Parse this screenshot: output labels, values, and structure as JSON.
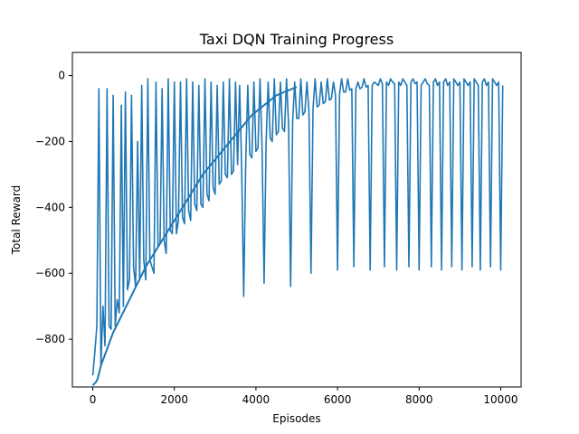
{
  "chart_data": {
    "type": "line",
    "title": "Taxi DQN Training Progress",
    "xlabel": "Episodes",
    "ylabel": "Total Reward",
    "xlim": [
      -500,
      10500
    ],
    "ylim": [
      -945,
      70
    ],
    "xticks": [
      0,
      2000,
      4000,
      6000,
      8000,
      10000
    ],
    "yticks": [
      0,
      -200,
      -400,
      -600,
      -800
    ],
    "x_tick_labels": [
      "0",
      "2000",
      "4000",
      "6000",
      "8000",
      "10000"
    ],
    "y_tick_labels": [
      "0",
      "−200",
      "−400",
      "−600",
      "−800"
    ],
    "grid": false,
    "legend": "none",
    "line_color": "#1f77b4",
    "series": [
      {
        "x_start": 0,
        "x_step": 50,
        "values": [
          -910,
          -840,
          -760,
          -40,
          -880,
          -700,
          -820,
          -40,
          -760,
          -770,
          -60,
          -760,
          -680,
          -720,
          -90,
          -700,
          -50,
          -650,
          -620,
          -60,
          -580,
          -640,
          -200,
          -620,
          -30,
          -560,
          -620,
          -10,
          -560,
          -580,
          -600,
          -20,
          -520,
          -510,
          -40,
          -500,
          -540,
          -10,
          -470,
          -480,
          -20,
          -480,
          -440,
          -20,
          -430,
          -450,
          -10,
          -410,
          -440,
          -20,
          -390,
          -410,
          -30,
          -390,
          -400,
          -10,
          -360,
          -380,
          -20,
          -340,
          -360,
          -30,
          -330,
          -320,
          -20,
          -300,
          -310,
          -10,
          -300,
          -290,
          -20,
          -270,
          -30,
          -280,
          -670,
          -260,
          -30,
          -240,
          -250,
          -20,
          -230,
          -220,
          -10,
          -220,
          -630,
          -200,
          -20,
          -190,
          -200,
          -10,
          -180,
          -170,
          -20,
          -160,
          -170,
          -10,
          -150,
          -640,
          -140,
          -20,
          -130,
          -130,
          -10,
          -120,
          -110,
          -20,
          -110,
          -600,
          -100,
          -10,
          -95,
          -90,
          -20,
          -85,
          -80,
          -10,
          -75,
          -70,
          -20,
          -60,
          -590,
          -55,
          -10,
          -50,
          -50,
          -10,
          -45,
          -40,
          -580,
          -40,
          -20,
          -40,
          -35,
          -10,
          -35,
          -30,
          -590,
          -30,
          -20,
          -25,
          -30,
          -10,
          -25,
          -580,
          -20,
          -30,
          -10,
          -20,
          -25,
          -590,
          -20,
          -30,
          -10,
          -20,
          -30,
          -580,
          -20,
          -10,
          -25,
          -20,
          -590,
          -30,
          -20,
          -10,
          -25,
          -30,
          -580,
          -20,
          -10,
          -30,
          -20,
          -590,
          -20,
          -10,
          -30,
          -20,
          -580,
          -10,
          -20,
          -30,
          -20,
          -590,
          -10,
          -20,
          -30,
          -20,
          -580,
          -10,
          -20,
          -30,
          -590,
          -20,
          -10,
          -30,
          -20,
          -580,
          -10,
          -20,
          -30,
          -20,
          -590,
          -30
        ]
      },
      {
        "x": [
          0,
          40,
          80,
          120,
          160,
          200,
          260,
          320,
          380,
          440,
          500,
          580,
          660,
          740,
          820,
          900,
          980,
          1060,
          1140,
          1220,
          1300,
          1400,
          1500,
          1600,
          1700,
          1800,
          1900,
          2000,
          2100,
          2200,
          2300,
          2400,
          2500,
          2600,
          2700,
          2800,
          2900,
          3000,
          3100,
          3200,
          3300,
          3400,
          3500,
          3600,
          3700,
          3800,
          3900,
          4000,
          4100,
          4200,
          4300,
          4400,
          4500,
          4600,
          4700,
          4800,
          4900,
          5000
        ],
        "values": [
          -940,
          -935,
          -930,
          -920,
          -900,
          -880,
          -860,
          -840,
          -820,
          -800,
          -780,
          -760,
          -740,
          -720,
          -700,
          -680,
          -660,
          -640,
          -620,
          -600,
          -580,
          -560,
          -540,
          -520,
          -500,
          -480,
          -460,
          -440,
          -420,
          -400,
          -380,
          -360,
          -340,
          -320,
          -300,
          -285,
          -270,
          -255,
          -240,
          -225,
          -210,
          -195,
          -180,
          -165,
          -150,
          -135,
          -120,
          -110,
          -100,
          -90,
          -80,
          -70,
          -60,
          -55,
          -50,
          -45,
          -40,
          -35
        ]
      }
    ]
  }
}
